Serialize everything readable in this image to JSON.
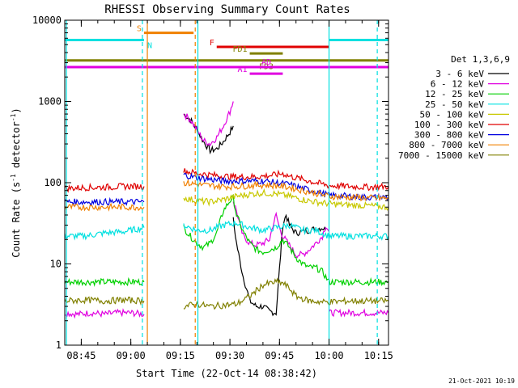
{
  "chart_data": {
    "type": "line",
    "title": "RHESSI Observing Summary Count Rates",
    "xlabel": "Start Time (22-Oct-14 08:38:42)",
    "ylabel_main": "Count Rate (s",
    "ylabel_sup1": "-1",
    "ylabel_mid": " detector",
    "ylabel_sup2": "-1",
    "ylabel_end": ")",
    "y_scale": "log",
    "ylim": [
      1,
      10000
    ],
    "xlim_minutes": [
      520,
      618
    ],
    "x_ticks": [
      {
        "minute": 525,
        "label": "08:45"
      },
      {
        "minute": 540,
        "label": "09:00"
      },
      {
        "minute": 555,
        "label": "09:15"
      },
      {
        "minute": 570,
        "label": "09:30"
      },
      {
        "minute": 585,
        "label": "09:45"
      },
      {
        "minute": 600,
        "label": "10:00"
      },
      {
        "minute": 615,
        "label": "10:15"
      }
    ],
    "y_ticks": [
      {
        "value": 1,
        "label": "1"
      },
      {
        "value": 10,
        "label": "10"
      },
      {
        "value": 100,
        "label": "100"
      },
      {
        "value": 1000,
        "label": "1000"
      },
      {
        "value": 10000,
        "label": "10000"
      }
    ],
    "legend_header": "Det 1,3,6,9",
    "legend_position": "right",
    "series": [
      {
        "name": "3 - 6 keV",
        "color": "#000000",
        "segments": [
          [
            [
              556,
              700
            ],
            [
              558,
              600
            ],
            [
              560,
              450
            ],
            [
              562,
              320
            ],
            [
              564,
              250
            ],
            [
              566,
              260
            ],
            [
              568,
              320
            ],
            [
              570,
              420
            ],
            [
              571,
              500
            ]
          ],
          [
            [
              571,
              35
            ],
            [
              572,
              18
            ],
            [
              573,
              11
            ],
            [
              574,
              7
            ],
            [
              575,
              5
            ],
            [
              576,
              3.5
            ],
            [
              578,
              3
            ],
            [
              580,
              3
            ],
            [
              582,
              2.6
            ],
            [
              584,
              2.5
            ],
            [
              586,
              30
            ],
            [
              587,
              40
            ],
            [
              588,
              30
            ],
            [
              590,
              24
            ],
            [
              594,
              26
            ],
            [
              598,
              28
            ],
            [
              599,
              26
            ]
          ]
        ]
      },
      {
        "name": "6 - 12 keV",
        "color": "#e000e0",
        "segments": [
          [
            [
              520,
              2.5
            ],
            [
              524,
              2.4
            ],
            [
              528,
              2.5
            ],
            [
              532,
              2.4
            ],
            [
              536,
              2.5
            ],
            [
              540,
              2.5
            ],
            [
              544,
              2.4
            ]
          ],
          [
            [
              556,
              700
            ],
            [
              558,
              600
            ],
            [
              560,
              450
            ],
            [
              562,
              330
            ],
            [
              564,
              300
            ],
            [
              566,
              360
            ],
            [
              568,
              500
            ],
            [
              570,
              750
            ],
            [
              571,
              1000
            ]
          ],
          [
            [
              571,
              60
            ],
            [
              572,
              45
            ],
            [
              573,
              30
            ],
            [
              574,
              22
            ],
            [
              576,
              18
            ],
            [
              578,
              17
            ],
            [
              580,
              18
            ],
            [
              582,
              20
            ],
            [
              583,
              30
            ],
            [
              584,
              40
            ],
            [
              585,
              28
            ],
            [
              586,
              22
            ],
            [
              588,
              17
            ],
            [
              590,
              13
            ],
            [
              592,
              13
            ],
            [
              594,
              15
            ],
            [
              596,
              18
            ],
            [
              598,
              22
            ],
            [
              599,
              30
            ],
            [
              600,
              25
            ]
          ],
          [
            [
              600,
              2.5
            ],
            [
              606,
              2.5
            ],
            [
              610,
              2.5
            ],
            [
              614,
              2.5
            ],
            [
              618,
              2.5
            ]
          ]
        ]
      },
      {
        "name": "12 - 25 keV",
        "color": "#00d000",
        "segments": [
          [
            [
              520,
              6
            ],
            [
              526,
              6
            ],
            [
              532,
              6
            ],
            [
              538,
              6
            ],
            [
              544,
              6
            ]
          ],
          [
            [
              556,
              28
            ],
            [
              558,
              22
            ],
            [
              560,
              18
            ],
            [
              562,
              16
            ],
            [
              564,
              18
            ],
            [
              566,
              24
            ],
            [
              568,
              45
            ],
            [
              570,
              60
            ],
            [
              571,
              65
            ],
            [
              572,
              40
            ],
            [
              574,
              25
            ],
            [
              576,
              18
            ],
            [
              578,
              15
            ],
            [
              580,
              14
            ],
            [
              582,
              15
            ],
            [
              584,
              16
            ],
            [
              586,
              20
            ],
            [
              588,
              16
            ],
            [
              590,
              12
            ],
            [
              592,
              10
            ],
            [
              594,
              9
            ],
            [
              596,
              9
            ],
            [
              598,
              8
            ],
            [
              600,
              6
            ],
            [
              606,
              6
            ],
            [
              612,
              6
            ],
            [
              618,
              6
            ]
          ]
        ]
      },
      {
        "name": "25 - 50 keV",
        "color": "#00e0e0",
        "segments": [
          [
            [
              520,
              22
            ],
            [
              526,
              22
            ],
            [
              532,
              24
            ],
            [
              538,
              25
            ],
            [
              544,
              28
            ]
          ],
          [
            [
              556,
              30
            ],
            [
              560,
              26
            ],
            [
              564,
              26
            ],
            [
              568,
              30
            ],
            [
              572,
              32
            ],
            [
              576,
              28
            ],
            [
              580,
              26
            ],
            [
              584,
              28
            ],
            [
              588,
              30
            ],
            [
              592,
              26
            ],
            [
              596,
              26
            ],
            [
              600,
              22
            ],
            [
              606,
              22
            ],
            [
              612,
              22
            ],
            [
              618,
              22
            ]
          ]
        ]
      },
      {
        "name": "50 - 100 keV",
        "color": "#c8c800",
        "segments": [
          [
            [
              556,
              65
            ],
            [
              560,
              60
            ],
            [
              564,
              58
            ],
            [
              568,
              62
            ],
            [
              572,
              68
            ],
            [
              576,
              72
            ],
            [
              580,
              75
            ],
            [
              584,
              73
            ],
            [
              588,
              68
            ],
            [
              592,
              62
            ],
            [
              596,
              58
            ],
            [
              600,
              55
            ],
            [
              606,
              53
            ],
            [
              612,
              52
            ],
            [
              618,
              50
            ]
          ]
        ]
      },
      {
        "name": "100 - 300 keV",
        "color": "#e00000",
        "segments": [
          [
            [
              520,
              85
            ],
            [
              526,
              87
            ],
            [
              532,
              88
            ],
            [
              538,
              90
            ],
            [
              544,
              90
            ]
          ],
          [
            [
              556,
              140
            ],
            [
              560,
              130
            ],
            [
              564,
              125
            ],
            [
              568,
              120
            ],
            [
              572,
              118
            ],
            [
              576,
              118
            ],
            [
              580,
              120
            ],
            [
              584,
              125
            ],
            [
              586,
              130
            ],
            [
              588,
              120
            ],
            [
              592,
              110
            ],
            [
              596,
              100
            ],
            [
              600,
              92
            ],
            [
              606,
              90
            ],
            [
              612,
              88
            ],
            [
              618,
              90
            ]
          ]
        ]
      },
      {
        "name": "300 - 800 keV",
        "color": "#0000e0",
        "segments": [
          [
            [
              520,
              58
            ],
            [
              526,
              58
            ],
            [
              532,
              58
            ],
            [
              538,
              58
            ],
            [
              544,
              58
            ]
          ],
          [
            [
              556,
              125
            ],
            [
              560,
              115
            ],
            [
              564,
              110
            ],
            [
              568,
              105
            ],
            [
              572,
              105
            ],
            [
              576,
              105
            ],
            [
              580,
              105
            ],
            [
              584,
              100
            ],
            [
              588,
              95
            ],
            [
              592,
              85
            ],
            [
              596,
              78
            ],
            [
              600,
              70
            ],
            [
              606,
              68
            ],
            [
              612,
              66
            ],
            [
              618,
              66
            ]
          ]
        ]
      },
      {
        "name": "800 - 7000 keV",
        "color": "#f08000",
        "segments": [
          [
            [
              520,
              50
            ],
            [
              526,
              50
            ],
            [
              532,
              50
            ],
            [
              538,
              50
            ],
            [
              544,
              50
            ]
          ],
          [
            [
              556,
              100
            ],
            [
              560,
              95
            ],
            [
              564,
              92
            ],
            [
              568,
              90
            ],
            [
              572,
              90
            ],
            [
              576,
              92
            ],
            [
              580,
              94
            ],
            [
              584,
              92
            ],
            [
              588,
              88
            ],
            [
              592,
              80
            ],
            [
              596,
              74
            ],
            [
              600,
              68
            ],
            [
              606,
              66
            ],
            [
              612,
              65
            ],
            [
              618,
              64
            ]
          ]
        ]
      },
      {
        "name": "7000 - 15000 keV",
        "color": "#808000",
        "segments": [
          [
            [
              520,
              3.5
            ],
            [
              526,
              3.6
            ],
            [
              532,
              3.5
            ],
            [
              538,
              3.6
            ],
            [
              544,
              3.5
            ]
          ],
          [
            [
              556,
              3
            ],
            [
              560,
              3.2
            ],
            [
              564,
              3
            ],
            [
              568,
              3.1
            ],
            [
              572,
              3.2
            ],
            [
              576,
              4
            ],
            [
              580,
              5.5
            ],
            [
              584,
              6
            ],
            [
              586,
              5.8
            ],
            [
              588,
              5
            ],
            [
              590,
              4
            ],
            [
              594,
              3.5
            ],
            [
              598,
              3.4
            ],
            [
              600,
              3.4
            ],
            [
              606,
              3.5
            ],
            [
              612,
              3.5
            ],
            [
              618,
              3.5
            ]
          ]
        ]
      }
    ],
    "state_bars": [
      {
        "label": "S",
        "color": "#f08000",
        "x0": 544,
        "x1": 559,
        "y": 7000,
        "label_pos": "left"
      },
      {
        "label": "N",
        "color": "#00e0e0",
        "x0": 520,
        "x1": 544,
        "y": 5700,
        "label_pos": "right"
      },
      {
        "label": "",
        "color": "#00e0e0",
        "x0": 600,
        "x1": 618,
        "y": 5700,
        "label_pos": "none"
      },
      {
        "label": "F",
        "color": "#e00000",
        "x0": 566,
        "x1": 600,
        "y": 4700,
        "label_pos": "left"
      },
      {
        "label": "FD1",
        "color": "#808000",
        "x0": 576,
        "x1": 586,
        "y": 3900,
        "label_pos": "left"
      },
      {
        "label": "FD3",
        "color": "#808000",
        "x0": 520,
        "x1": 618,
        "y": 3200,
        "label_pos": "below-mid"
      },
      {
        "label": "AD",
        "color": "#e000e0",
        "x0": 520,
        "x1": 618,
        "y": 2650,
        "label_pos": "above-mid"
      },
      {
        "label": "A1",
        "color": "#e000e0",
        "x0": 576,
        "x1": 586,
        "y": 2200,
        "label_pos": "left"
      }
    ],
    "vertical_lines": [
      {
        "x": 520.5,
        "color": "#00e0e0",
        "style": "solid"
      },
      {
        "x": 543.5,
        "color": "#00e0e0",
        "style": "dashed"
      },
      {
        "x": 545,
        "color": "#f08000",
        "style": "solid"
      },
      {
        "x": 559.5,
        "color": "#f08000",
        "style": "dashed"
      },
      {
        "x": 560.3,
        "color": "#00e0e0",
        "style": "solid"
      },
      {
        "x": 600,
        "color": "#00e0e0",
        "style": "solid"
      },
      {
        "x": 614.6,
        "color": "#00e0e0",
        "style": "dashed"
      }
    ],
    "timestamp": "21-Oct-2021 10:19"
  }
}
